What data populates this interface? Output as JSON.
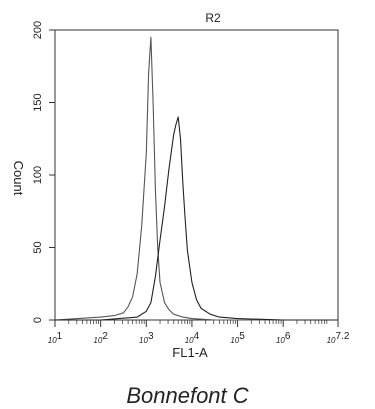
{
  "chart_data": {
    "type": "line",
    "title": "R2",
    "xlabel": "FL1-A",
    "ylabel": "Count",
    "xscale": "log",
    "xlim": [
      1,
      7.2
    ],
    "ylim": [
      0,
      200
    ],
    "y_ticks": [
      0,
      50,
      100,
      150,
      200
    ],
    "x_ticks": [
      {
        "value": 1,
        "label": "10^1"
      },
      {
        "value": 2,
        "label": "10^2"
      },
      {
        "value": 3,
        "label": "10^3"
      },
      {
        "value": 4,
        "label": "10^4"
      },
      {
        "value": 5,
        "label": "10^5"
      },
      {
        "value": 6,
        "label": "10^6"
      },
      {
        "value": 7.2,
        "label": "10^7.2"
      }
    ],
    "grid": false,
    "legend": "none",
    "series": [
      {
        "color": "#555555",
        "x": [
          1.0,
          1.5,
          2.0,
          2.3,
          2.5,
          2.6,
          2.7,
          2.8,
          2.9,
          3.0,
          3.05,
          3.1,
          3.15,
          3.2,
          3.25,
          3.3,
          3.4,
          3.5,
          3.6,
          3.8,
          4.0,
          4.5,
          5.0,
          6.0,
          7.2
        ],
        "values": [
          0,
          1,
          2,
          3,
          5,
          9,
          16,
          32,
          65,
          115,
          170,
          195,
          150,
          90,
          50,
          26,
          12,
          7,
          4,
          2,
          1,
          0,
          0,
          0,
          0
        ]
      },
      {
        "color": "#222222",
        "x": [
          1.0,
          2.0,
          2.8,
          3.0,
          3.1,
          3.2,
          3.3,
          3.4,
          3.5,
          3.6,
          3.65,
          3.7,
          3.75,
          3.8,
          3.85,
          3.9,
          4.0,
          4.1,
          4.2,
          4.4,
          4.6,
          5.0,
          6.0,
          7.2
        ],
        "values": [
          0,
          0,
          2,
          6,
          12,
          30,
          55,
          78,
          105,
          128,
          135,
          140,
          125,
          95,
          70,
          48,
          26,
          14,
          8,
          4,
          2,
          1,
          0,
          0
        ]
      }
    ]
  },
  "caption": "Bonnefont C"
}
